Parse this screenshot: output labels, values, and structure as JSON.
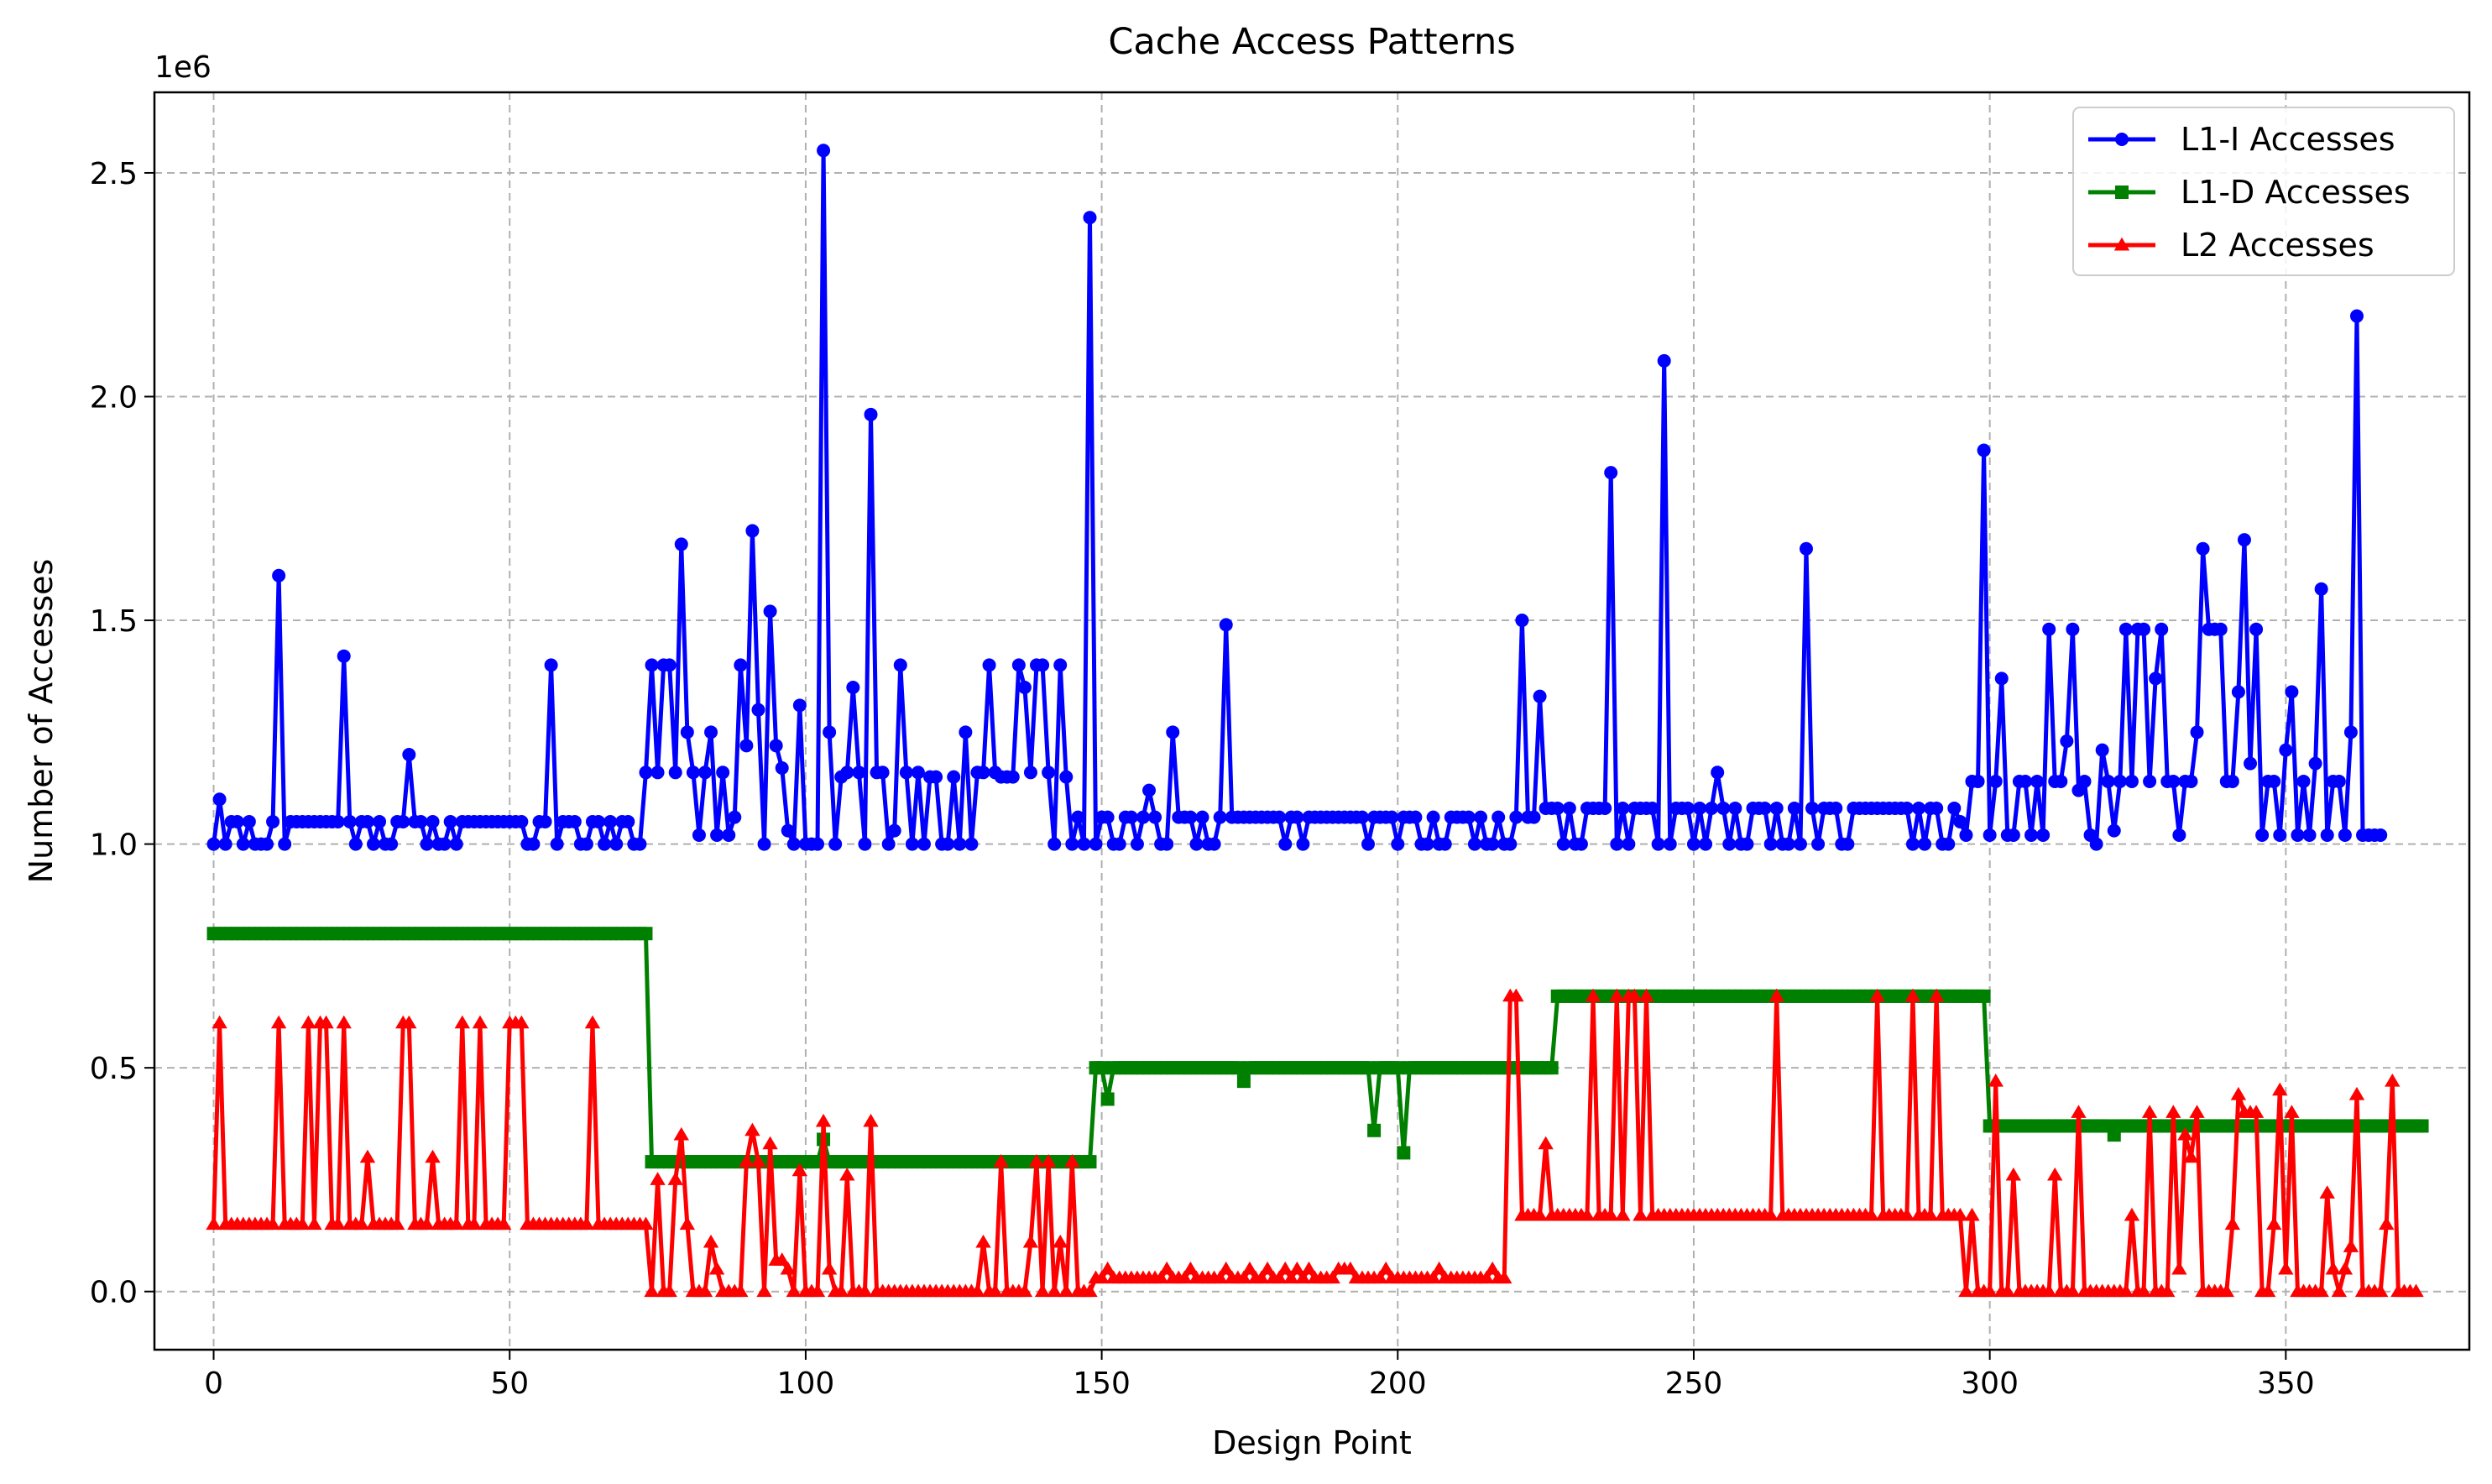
{
  "chart_data": {
    "type": "line",
    "title": "Cache Access Patterns",
    "xlabel": "Design Point",
    "ylabel": "Number of Accesses",
    "y_offset_text": "1e6",
    "xlim": [
      -10,
      381
    ],
    "ylim": [
      -0.13,
      2.68
    ],
    "x_ticks": [
      0,
      50,
      100,
      150,
      200,
      250,
      300,
      350
    ],
    "x_tick_labels": [
      "0",
      "50",
      "100",
      "150",
      "200",
      "250",
      "300",
      "350"
    ],
    "y_ticks": [
      0,
      0.5,
      1.0,
      1.5,
      2.0,
      2.5
    ],
    "y_tick_labels": [
      "0.0",
      "0.5",
      "1.0",
      "1.5",
      "2.0",
      "2.5"
    ],
    "grid": true,
    "legend_position": "top-right",
    "series": [
      {
        "name": "L1-I Accesses",
        "color": "#0000ff",
        "marker": "circle",
        "values": [
          1.0,
          1.1,
          1.0,
          1.05,
          1.05,
          1.0,
          1.05,
          1.0,
          1.0,
          1.0,
          1.05,
          1.6,
          1.0,
          1.05,
          1.05,
          1.05,
          1.05,
          1.05,
          1.05,
          1.05,
          1.05,
          1.05,
          1.42,
          1.05,
          1.0,
          1.05,
          1.05,
          1.0,
          1.05,
          1.0,
          1.0,
          1.05,
          1.05,
          1.2,
          1.05,
          1.05,
          1.0,
          1.05,
          1.0,
          1.0,
          1.05,
          1.0,
          1.05,
          1.05,
          1.05,
          1.05,
          1.05,
          1.05,
          1.05,
          1.05,
          1.05,
          1.05,
          1.05,
          1.0,
          1.0,
          1.05,
          1.05,
          1.4,
          1.0,
          1.05,
          1.05,
          1.05,
          1.0,
          1.0,
          1.05,
          1.05,
          1.0,
          1.05,
          1.0,
          1.05,
          1.05,
          1.0,
          1.0,
          1.16,
          1.4,
          1.16,
          1.4,
          1.4,
          1.16,
          1.67,
          1.25,
          1.16,
          1.02,
          1.16,
          1.25,
          1.02,
          1.16,
          1.02,
          1.06,
          1.4,
          1.22,
          1.7,
          1.3,
          1.0,
          1.52,
          1.22,
          1.17,
          1.03,
          1.0,
          1.31,
          1.0,
          1.0,
          1.0,
          2.55,
          1.25,
          1.0,
          1.15,
          1.16,
          1.35,
          1.16,
          1.0,
          1.96,
          1.16,
          1.16,
          1.0,
          1.03,
          1.4,
          1.16,
          1.0,
          1.16,
          1.0,
          1.15,
          1.15,
          1.0,
          1.0,
          1.15,
          1.0,
          1.25,
          1.0,
          1.16,
          1.16,
          1.4,
          1.16,
          1.15,
          1.15,
          1.15,
          1.4,
          1.35,
          1.16,
          1.4,
          1.4,
          1.16,
          1.0,
          1.4,
          1.15,
          1.0,
          1.06,
          1.0,
          2.4,
          1.0,
          1.06,
          1.06,
          1.0,
          1.0,
          1.06,
          1.06,
          1.0,
          1.06,
          1.12,
          1.06,
          1.0,
          1.0,
          1.25,
          1.06,
          1.06,
          1.06,
          1.0,
          1.06,
          1.0,
          1.0,
          1.06,
          1.49,
          1.06,
          1.06,
          1.06,
          1.06,
          1.06,
          1.06,
          1.06,
          1.06,
          1.06,
          1.0,
          1.06,
          1.06,
          1.0,
          1.06,
          1.06,
          1.06,
          1.06,
          1.06,
          1.06,
          1.06,
          1.06,
          1.06,
          1.06,
          1.0,
          1.06,
          1.06,
          1.06,
          1.06,
          1.0,
          1.06,
          1.06,
          1.06,
          1.0,
          1.0,
          1.06,
          1.0,
          1.0,
          1.06,
          1.06,
          1.06,
          1.06,
          1.0,
          1.06,
          1.0,
          1.0,
          1.06,
          1.0,
          1.0,
          1.06,
          1.5,
          1.06,
          1.06,
          1.33,
          1.08,
          1.08,
          1.08,
          1.0,
          1.08,
          1.0,
          1.0,
          1.08,
          1.08,
          1.08,
          1.08,
          1.83,
          1.0,
          1.08,
          1.0,
          1.08,
          1.08,
          1.08,
          1.08,
          1.0,
          2.08,
          1.0,
          1.08,
          1.08,
          1.08,
          1.0,
          1.08,
          1.0,
          1.08,
          1.16,
          1.08,
          1.0,
          1.08,
          1.0,
          1.0,
          1.08,
          1.08,
          1.08,
          1.0,
          1.08,
          1.0,
          1.0,
          1.08,
          1.0,
          1.66,
          1.08,
          1.0,
          1.08,
          1.08,
          1.08,
          1.0,
          1.0,
          1.08,
          1.08,
          1.08,
          1.08,
          1.08,
          1.08,
          1.08,
          1.08,
          1.08,
          1.08,
          1.0,
          1.08,
          1.0,
          1.08,
          1.08,
          1.0,
          1.0,
          1.08,
          1.05,
          1.02,
          1.14,
          1.14,
          1.88,
          1.02,
          1.14,
          1.37,
          1.02,
          1.02,
          1.14,
          1.14,
          1.02,
          1.14,
          1.02,
          1.48,
          1.14,
          1.14,
          1.23,
          1.48,
          1.12,
          1.14,
          1.02,
          1.0,
          1.21,
          1.14,
          1.03,
          1.14,
          1.48,
          1.14,
          1.48,
          1.48,
          1.14,
          1.37,
          1.48,
          1.14,
          1.14,
          1.02,
          1.14,
          1.14,
          1.25,
          1.66,
          1.48,
          1.48,
          1.48,
          1.14,
          1.14,
          1.34,
          1.68,
          1.18,
          1.48,
          1.02,
          1.14,
          1.14,
          1.02,
          1.21,
          1.34,
          1.02,
          1.14,
          1.02,
          1.18,
          1.57,
          1.02,
          1.14,
          1.14,
          1.02,
          1.25,
          2.18,
          1.02,
          1.02,
          1.02,
          1.02
        ]
      },
      {
        "name": "L1-D Accesses",
        "color": "#008000",
        "marker": "square",
        "values": [
          0.8,
          0.8,
          0.8,
          0.8,
          0.8,
          0.8,
          0.8,
          0.8,
          0.8,
          0.8,
          0.8,
          0.8,
          0.8,
          0.8,
          0.8,
          0.8,
          0.8,
          0.8,
          0.8,
          0.8,
          0.8,
          0.8,
          0.8,
          0.8,
          0.8,
          0.8,
          0.8,
          0.8,
          0.8,
          0.8,
          0.8,
          0.8,
          0.8,
          0.8,
          0.8,
          0.8,
          0.8,
          0.8,
          0.8,
          0.8,
          0.8,
          0.8,
          0.8,
          0.8,
          0.8,
          0.8,
          0.8,
          0.8,
          0.8,
          0.8,
          0.8,
          0.8,
          0.8,
          0.8,
          0.8,
          0.8,
          0.8,
          0.8,
          0.8,
          0.8,
          0.8,
          0.8,
          0.8,
          0.8,
          0.8,
          0.8,
          0.8,
          0.8,
          0.8,
          0.8,
          0.8,
          0.8,
          0.8,
          0.8,
          0.29,
          0.29,
          0.29,
          0.29,
          0.29,
          0.29,
          0.29,
          0.29,
          0.29,
          0.29,
          0.29,
          0.29,
          0.29,
          0.29,
          0.29,
          0.29,
          0.29,
          0.29,
          0.29,
          0.29,
          0.29,
          0.29,
          0.29,
          0.29,
          0.29,
          0.29,
          0.29,
          0.29,
          0.29,
          0.34,
          0.29,
          0.29,
          0.29,
          0.29,
          0.29,
          0.29,
          0.29,
          0.29,
          0.29,
          0.29,
          0.29,
          0.29,
          0.29,
          0.29,
          0.29,
          0.29,
          0.29,
          0.29,
          0.29,
          0.29,
          0.29,
          0.29,
          0.29,
          0.29,
          0.29,
          0.29,
          0.29,
          0.29,
          0.29,
          0.29,
          0.29,
          0.29,
          0.29,
          0.29,
          0.29,
          0.29,
          0.29,
          0.29,
          0.29,
          0.29,
          0.29,
          0.29,
          0.29,
          0.29,
          0.29,
          0.5,
          0.5,
          0.43,
          0.5,
          0.5,
          0.5,
          0.5,
          0.5,
          0.5,
          0.5,
          0.5,
          0.5,
          0.5,
          0.5,
          0.5,
          0.5,
          0.5,
          0.5,
          0.5,
          0.5,
          0.5,
          0.5,
          0.5,
          0.5,
          0.5,
          0.47,
          0.5,
          0.5,
          0.5,
          0.5,
          0.5,
          0.5,
          0.5,
          0.5,
          0.5,
          0.5,
          0.5,
          0.5,
          0.5,
          0.5,
          0.5,
          0.5,
          0.5,
          0.5,
          0.5,
          0.5,
          0.5,
          0.36,
          0.5,
          0.5,
          0.5,
          0.5,
          0.31,
          0.5,
          0.5,
          0.5,
          0.5,
          0.5,
          0.5,
          0.5,
          0.5,
          0.5,
          0.5,
          0.5,
          0.5,
          0.5,
          0.5,
          0.5,
          0.5,
          0.5,
          0.5,
          0.5,
          0.5,
          0.5,
          0.5,
          0.5,
          0.5,
          0.5,
          0.66,
          0.66,
          0.66,
          0.66,
          0.66,
          0.66,
          0.66,
          0.66,
          0.66,
          0.66,
          0.66,
          0.66,
          0.66,
          0.66,
          0.66,
          0.66,
          0.66,
          0.66,
          0.66,
          0.66,
          0.66,
          0.66,
          0.66,
          0.66,
          0.66,
          0.66,
          0.66,
          0.66,
          0.66,
          0.66,
          0.66,
          0.66,
          0.66,
          0.66,
          0.66,
          0.66,
          0.66,
          0.66,
          0.66,
          0.66,
          0.66,
          0.66,
          0.66,
          0.66,
          0.66,
          0.66,
          0.66,
          0.66,
          0.66,
          0.66,
          0.66,
          0.66,
          0.66,
          0.66,
          0.66,
          0.66,
          0.66,
          0.66,
          0.66,
          0.66,
          0.66,
          0.66,
          0.66,
          0.66,
          0.66,
          0.66,
          0.66,
          0.66,
          0.66,
          0.66,
          0.66,
          0.66,
          0.66,
          0.37,
          0.37,
          0.37,
          0.37,
          0.37,
          0.37,
          0.37,
          0.37,
          0.37,
          0.37,
          0.37,
          0.37,
          0.37,
          0.37,
          0.37,
          0.37,
          0.37,
          0.37,
          0.37,
          0.37,
          0.37,
          0.35,
          0.37,
          0.37,
          0.37,
          0.37,
          0.37,
          0.37,
          0.37,
          0.37,
          0.37,
          0.37,
          0.37,
          0.37,
          0.37,
          0.37,
          0.37,
          0.37,
          0.37,
          0.37,
          0.37,
          0.37,
          0.37,
          0.37,
          0.37,
          0.37,
          0.37,
          0.37,
          0.37,
          0.37,
          0.37,
          0.37,
          0.37,
          0.37,
          0.37,
          0.37,
          0.37,
          0.37,
          0.37,
          0.37,
          0.37,
          0.37,
          0.37,
          0.37,
          0.37,
          0.37,
          0.37,
          0.37,
          0.37,
          0.37,
          0.37,
          0.37,
          0.37,
          0.37
        ]
      },
      {
        "name": "L2 Accesses",
        "color": "#ff0000",
        "marker": "triangle",
        "values": [
          0.15,
          0.6,
          0.15,
          0.15,
          0.15,
          0.15,
          0.15,
          0.15,
          0.15,
          0.15,
          0.15,
          0.6,
          0.15,
          0.15,
          0.15,
          0.15,
          0.6,
          0.15,
          0.6,
          0.6,
          0.15,
          0.15,
          0.6,
          0.15,
          0.15,
          0.15,
          0.3,
          0.15,
          0.15,
          0.15,
          0.15,
          0.15,
          0.6,
          0.6,
          0.15,
          0.15,
          0.15,
          0.3,
          0.15,
          0.15,
          0.15,
          0.15,
          0.6,
          0.15,
          0.15,
          0.6,
          0.15,
          0.15,
          0.15,
          0.15,
          0.6,
          0.6,
          0.6,
          0.15,
          0.15,
          0.15,
          0.15,
          0.15,
          0.15,
          0.15,
          0.15,
          0.15,
          0.15,
          0.15,
          0.6,
          0.15,
          0.15,
          0.15,
          0.15,
          0.15,
          0.15,
          0.15,
          0.15,
          0.15,
          0.0,
          0.25,
          0.0,
          0.0,
          0.25,
          0.35,
          0.15,
          0.0,
          0.0,
          0.0,
          0.11,
          0.05,
          0.0,
          0.0,
          0.0,
          0.0,
          0.29,
          0.36,
          0.29,
          0.0,
          0.33,
          0.07,
          0.07,
          0.05,
          0.0,
          0.27,
          0.0,
          0.0,
          0.0,
          0.38,
          0.05,
          0.0,
          0.0,
          0.26,
          0.0,
          0.0,
          0.0,
          0.38,
          0.0,
          0.0,
          0.0,
          0.0,
          0.0,
          0.0,
          0.0,
          0.0,
          0.0,
          0.0,
          0.0,
          0.0,
          0.0,
          0.0,
          0.0,
          0.0,
          0.0,
          0.0,
          0.11,
          0.0,
          0.0,
          0.29,
          0.0,
          0.0,
          0.0,
          0.0,
          0.11,
          0.29,
          0.0,
          0.29,
          0.0,
          0.11,
          0.0,
          0.29,
          0.0,
          0.0,
          0.0,
          0.03,
          0.03,
          0.05,
          0.03,
          0.03,
          0.03,
          0.03,
          0.03,
          0.03,
          0.03,
          0.03,
          0.03,
          0.05,
          0.03,
          0.03,
          0.03,
          0.05,
          0.03,
          0.03,
          0.03,
          0.03,
          0.03,
          0.05,
          0.03,
          0.03,
          0.03,
          0.05,
          0.03,
          0.03,
          0.05,
          0.03,
          0.03,
          0.05,
          0.03,
          0.05,
          0.03,
          0.05,
          0.03,
          0.03,
          0.03,
          0.03,
          0.05,
          0.05,
          0.05,
          0.03,
          0.03,
          0.03,
          0.03,
          0.03,
          0.05,
          0.03,
          0.03,
          0.03,
          0.03,
          0.03,
          0.03,
          0.03,
          0.03,
          0.05,
          0.03,
          0.03,
          0.03,
          0.03,
          0.03,
          0.03,
          0.03,
          0.03,
          0.05,
          0.03,
          0.03,
          0.66,
          0.66,
          0.17,
          0.17,
          0.17,
          0.17,
          0.33,
          0.17,
          0.17,
          0.17,
          0.17,
          0.17,
          0.17,
          0.17,
          0.66,
          0.17,
          0.17,
          0.17,
          0.66,
          0.17,
          0.66,
          0.66,
          0.17,
          0.66,
          0.17,
          0.17,
          0.17,
          0.17,
          0.17,
          0.17,
          0.17,
          0.17,
          0.17,
          0.17,
          0.17,
          0.17,
          0.17,
          0.17,
          0.17,
          0.17,
          0.17,
          0.17,
          0.17,
          0.17,
          0.17,
          0.66,
          0.17,
          0.17,
          0.17,
          0.17,
          0.17,
          0.17,
          0.17,
          0.17,
          0.17,
          0.17,
          0.17,
          0.17,
          0.17,
          0.17,
          0.17,
          0.17,
          0.66,
          0.17,
          0.17,
          0.17,
          0.17,
          0.17,
          0.66,
          0.17,
          0.17,
          0.17,
          0.66,
          0.17,
          0.17,
          0.17,
          0.17,
          0.0,
          0.17,
          0.0,
          0.0,
          0.0,
          0.47,
          0.0,
          0.0,
          0.26,
          0.0,
          0.0,
          0.0,
          0.0,
          0.0,
          0.0,
          0.26,
          0.0,
          0.0,
          0.0,
          0.4,
          0.0,
          0.0,
          0.0,
          0.0,
          0.0,
          0.0,
          0.0,
          0.0,
          0.17,
          0.0,
          0.0,
          0.4,
          0.0,
          0.0,
          0.0,
          0.4,
          0.05,
          0.35,
          0.3,
          0.4,
          0.0,
          0.0,
          0.0,
          0.0,
          0.0,
          0.15,
          0.44,
          0.4,
          0.4,
          0.4,
          0.0,
          0.0,
          0.15,
          0.45,
          0.05,
          0.4,
          0.0,
          0.0,
          0.0,
          0.0,
          0.0,
          0.22,
          0.05,
          0.0,
          0.05,
          0.1,
          0.44,
          0.0,
          0.0,
          0.0,
          0.0,
          0.15,
          0.47,
          0.0,
          0.0,
          0.0,
          0.0
        ]
      }
    ]
  }
}
